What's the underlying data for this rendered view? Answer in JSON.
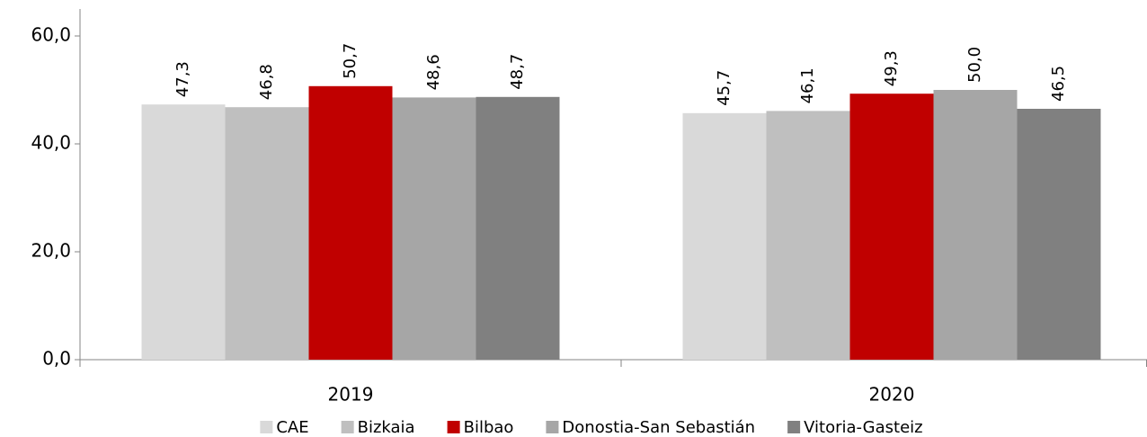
{
  "chart_data": {
    "type": "bar",
    "categories": [
      "2019",
      "2020"
    ],
    "series": [
      {
        "name": "CAE",
        "color": "#d9d9d9",
        "values": [
          47.3,
          45.7
        ],
        "value_labels": [
          "47,3",
          "45,7"
        ]
      },
      {
        "name": "Bizkaia",
        "color": "#bfbfbf",
        "values": [
          46.8,
          46.1
        ],
        "value_labels": [
          "46,8",
          "46,1"
        ]
      },
      {
        "name": "Bilbao",
        "color": "#c00000",
        "values": [
          50.7,
          49.3
        ],
        "value_labels": [
          "50,7",
          "49,3"
        ]
      },
      {
        "name": "Donostia-San Sebastián",
        "color": "#a6a6a6",
        "values": [
          48.6,
          50.0
        ],
        "value_labels": [
          "48,6",
          "50,0"
        ]
      },
      {
        "name": "Vitoria-Gasteiz",
        "color": "#808080",
        "values": [
          48.7,
          46.5
        ],
        "value_labels": [
          "48,7",
          "46,5"
        ]
      }
    ],
    "ylim": [
      0,
      65
    ],
    "yticks": [
      {
        "value": 0,
        "label": "0,0"
      },
      {
        "value": 20,
        "label": "20,0"
      },
      {
        "value": 40,
        "label": "40,0"
      },
      {
        "value": 60,
        "label": "60,0"
      }
    ],
    "legend": "bottom"
  }
}
